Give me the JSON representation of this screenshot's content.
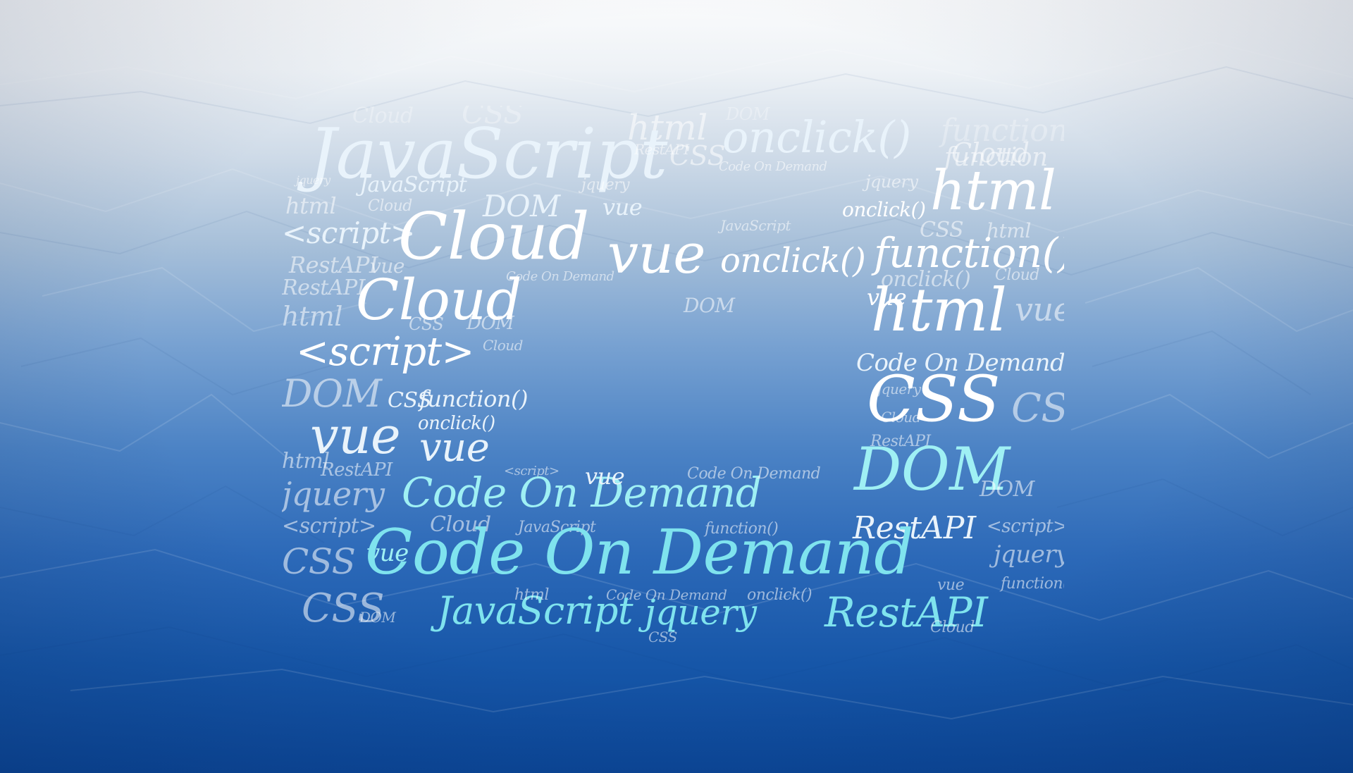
{
  "colors": {
    "top": "#fafbfc",
    "middle": "#4c83c5",
    "bottom": "#0c4798",
    "word_white": "#ffffff",
    "word_cyan": "#9ff0f4"
  },
  "word_cloud": {
    "words": [
      {
        "text": "Cloud"
      },
      {
        "text": "CSS"
      },
      {
        "text": "DOM"
      },
      {
        "text": "html"
      },
      {
        "text": "function"
      },
      {
        "text": "JavaScript"
      },
      {
        "text": "onclick()"
      },
      {
        "text": "function"
      },
      {
        "text": "RestAPI"
      },
      {
        "text": "CSS"
      },
      {
        "text": "Code On Demand"
      },
      {
        "text": "Cloud"
      },
      {
        "text": "jquery"
      },
      {
        "text": "JavaScript"
      },
      {
        "text": "jquery"
      },
      {
        "text": "html"
      },
      {
        "text": "jquery"
      },
      {
        "text": "html"
      },
      {
        "text": "Cloud"
      },
      {
        "text": "DOM"
      },
      {
        "text": "vue"
      },
      {
        "text": "onclick()"
      },
      {
        "text": "<script>"
      },
      {
        "text": "Cloud"
      },
      {
        "text": "vue"
      },
      {
        "text": "JavaScript"
      },
      {
        "text": "CSS"
      },
      {
        "text": "html"
      },
      {
        "text": "RestAPI"
      },
      {
        "text": "vue"
      },
      {
        "text": "onclick()"
      },
      {
        "text": "function()"
      },
      {
        "text": "Code On Demand"
      },
      {
        "text": "RestAPI"
      },
      {
        "text": "Cloud"
      },
      {
        "text": "onclick()"
      },
      {
        "text": "Cloud"
      },
      {
        "text": "html"
      },
      {
        "text": "vue"
      },
      {
        "text": "DOM"
      },
      {
        "text": "html"
      },
      {
        "text": "vue"
      },
      {
        "text": "CSS"
      },
      {
        "text": "DOM"
      },
      {
        "text": "<script>"
      },
      {
        "text": "Cloud"
      },
      {
        "text": "Code On Demand"
      },
      {
        "text": "DOM"
      },
      {
        "text": "CSS"
      },
      {
        "text": "function()"
      },
      {
        "text": "jquery"
      },
      {
        "text": "CSS"
      },
      {
        "text": "CSS"
      },
      {
        "text": "Cloud"
      },
      {
        "text": "vue"
      },
      {
        "text": "onclick()"
      },
      {
        "text": "vue"
      },
      {
        "text": "RestAPI"
      },
      {
        "text": "DOM"
      },
      {
        "text": "html"
      },
      {
        "text": "RestAPI"
      },
      {
        "text": "<script>"
      },
      {
        "text": "jquery"
      },
      {
        "text": "Code On Demand"
      },
      {
        "text": "vue"
      },
      {
        "text": "Code On Demand"
      },
      {
        "text": "DOM"
      },
      {
        "text": "<script>"
      },
      {
        "text": "Cloud"
      },
      {
        "text": "JavaScript"
      },
      {
        "text": "function()"
      },
      {
        "text": "RestAPI"
      },
      {
        "text": "<script>"
      },
      {
        "text": "CSS"
      },
      {
        "text": "vue"
      },
      {
        "text": "Code On Demand"
      },
      {
        "text": "jquery"
      },
      {
        "text": "function()"
      },
      {
        "text": "Code On Demand"
      },
      {
        "text": "CSS"
      },
      {
        "text": "JavaScript"
      },
      {
        "text": "jquery"
      },
      {
        "text": "RestAPI"
      },
      {
        "text": "html"
      },
      {
        "text": "onclick()"
      },
      {
        "text": "vue"
      },
      {
        "text": "DOM"
      },
      {
        "text": "CSS"
      },
      {
        "text": "Cloud"
      }
    ]
  }
}
